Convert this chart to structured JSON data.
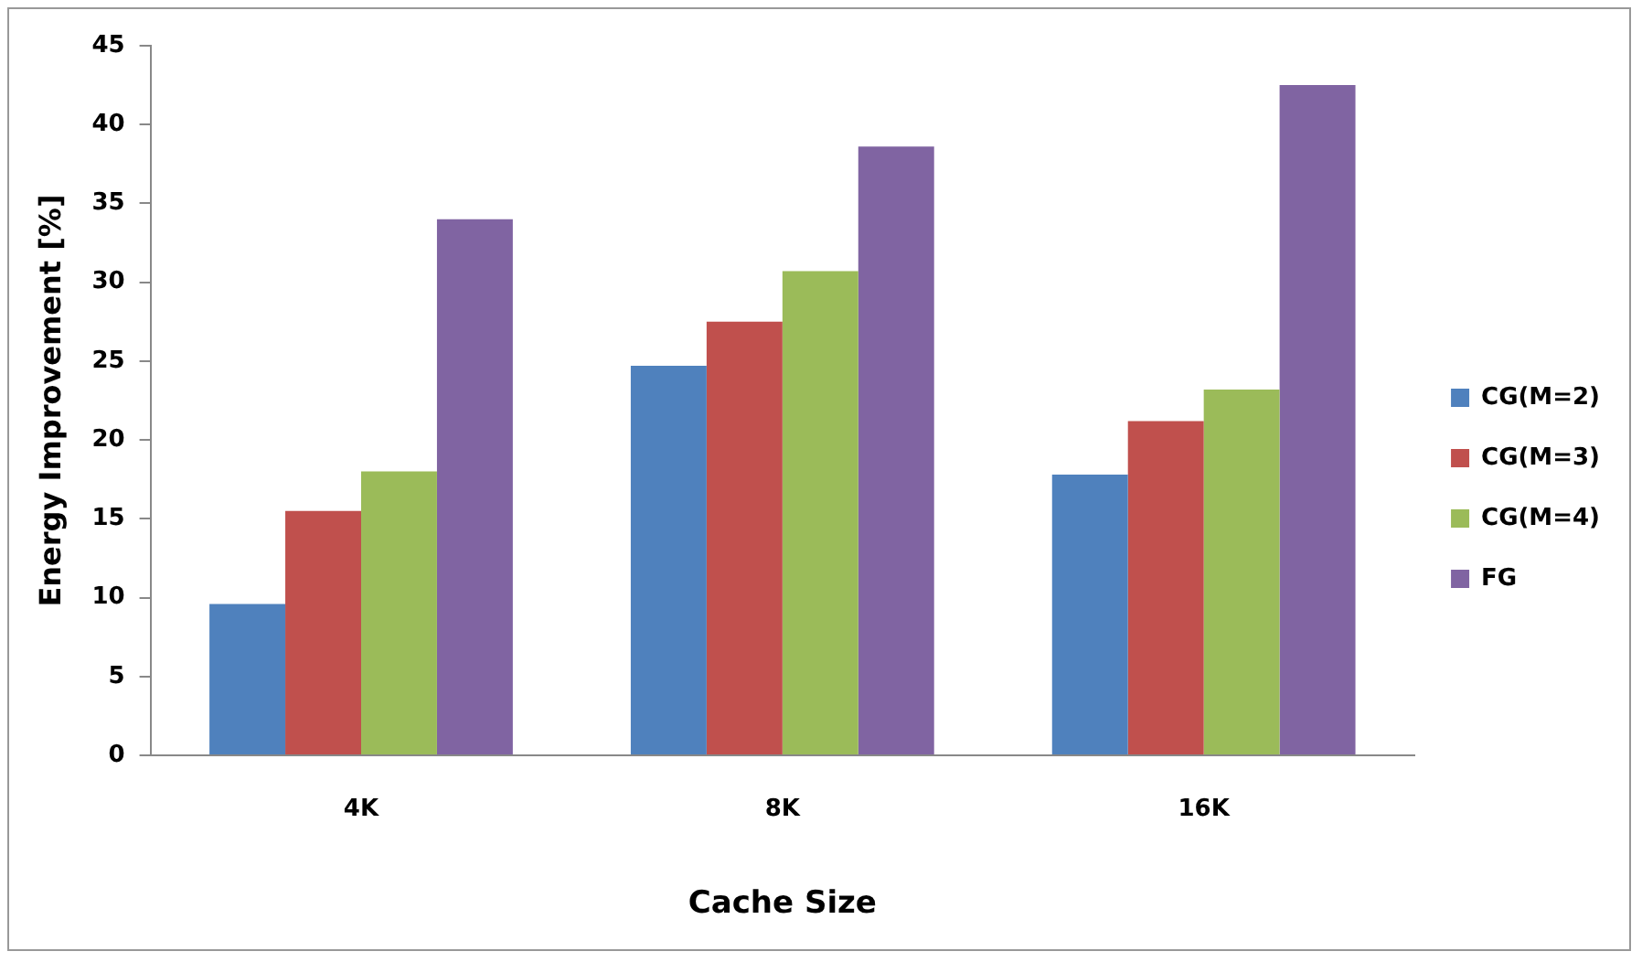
{
  "chart_data": {
    "type": "bar",
    "xlabel": "Cache Size",
    "ylabel": "Energy Improvement [%]",
    "categories": [
      "4K",
      "8K",
      "16K"
    ],
    "series": [
      {
        "name": "CG(M=2)",
        "color": "#4f81bd",
        "values": [
          9.6,
          24.7,
          17.8
        ]
      },
      {
        "name": "CG(M=3)",
        "color": "#c0504d",
        "values": [
          15.5,
          27.5,
          21.2
        ]
      },
      {
        "name": "CG(M=4)",
        "color": "#9bbb59",
        "values": [
          18.0,
          30.7,
          23.2
        ]
      },
      {
        "name": "FG",
        "color": "#8064a2",
        "values": [
          34.0,
          38.6,
          42.5
        ]
      }
    ],
    "ylim": [
      0,
      45
    ],
    "yticks": [
      0,
      5,
      10,
      15,
      20,
      25,
      30,
      35,
      40,
      45
    ],
    "grid": false,
    "legend": "right"
  }
}
